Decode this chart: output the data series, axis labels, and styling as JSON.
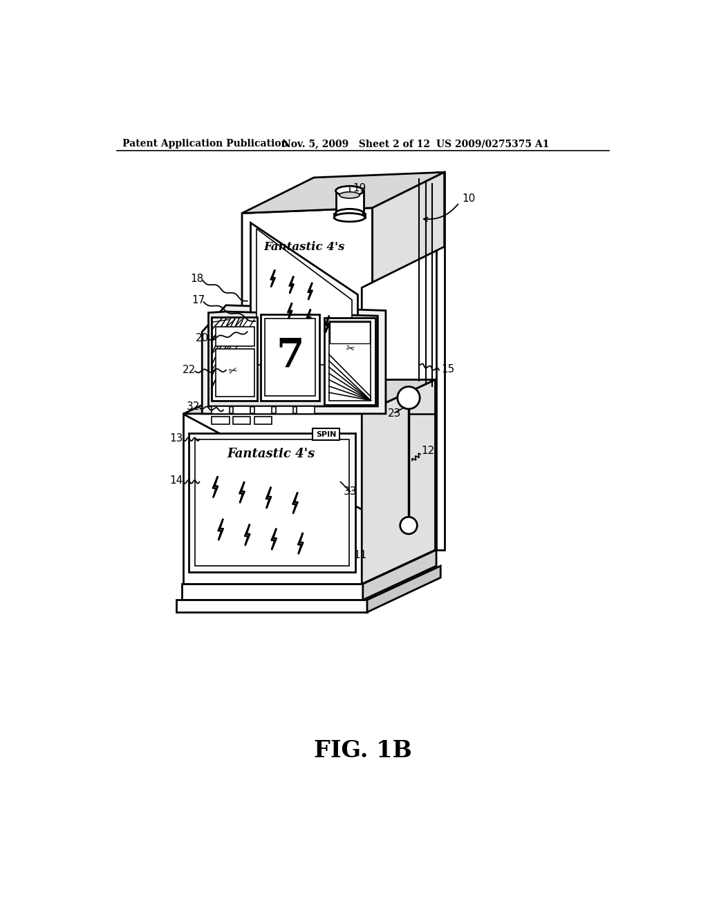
{
  "bg_color": "#ffffff",
  "line_color": "#000000",
  "header_left": "Patent Application Publication",
  "header_mid": "Nov. 5, 2009   Sheet 2 of 12",
  "header_right": "US 2009/0275375 A1",
  "figure_label": "FIG. 1B",
  "lw": 2.0
}
